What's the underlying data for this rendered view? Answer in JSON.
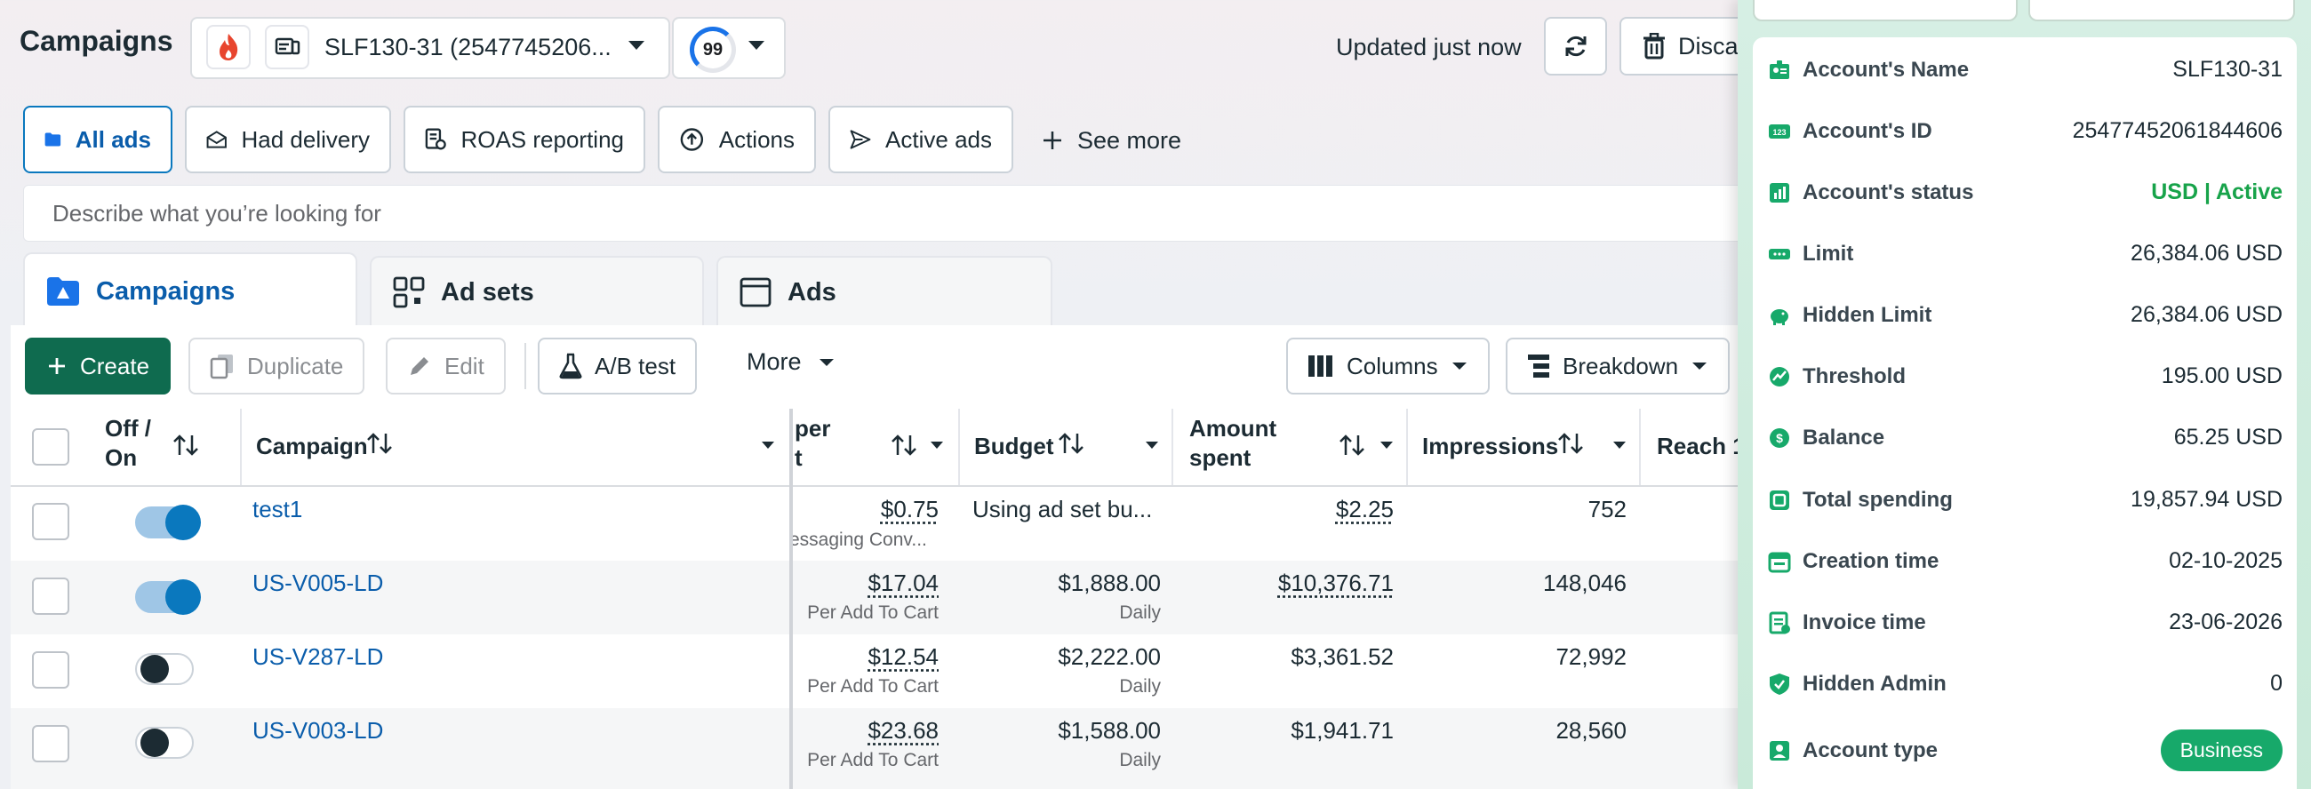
{
  "header": {
    "title": "Campaigns",
    "account_name": "SLF130-31 (2547745206...",
    "score": "99",
    "updated": "Updated just now",
    "discard_label": "Discard"
  },
  "filters": [
    {
      "label": "All ads",
      "icon": "folder-icon"
    },
    {
      "label": "Had delivery",
      "icon": "envelope-icon"
    },
    {
      "label": "ROAS reporting",
      "icon": "report-icon"
    },
    {
      "label": "Actions",
      "icon": "action-icon"
    },
    {
      "label": "Active ads",
      "icon": "send-icon"
    }
  ],
  "see_more": "See more",
  "search": {
    "placeholder": "Describe what you’re looking for"
  },
  "tabs": [
    {
      "label": "Campaigns",
      "icon": "campaign-folder-icon"
    },
    {
      "label": "Ad sets",
      "icon": "grid-icon"
    },
    {
      "label": "Ads",
      "icon": "ad-window-icon"
    }
  ],
  "toolbar": {
    "create": "Create",
    "duplicate": "Duplicate",
    "edit": "Edit",
    "ab_test": "A/B test",
    "more": "More",
    "columns": "Columns",
    "breakdown": "Breakdown"
  },
  "table": {
    "headers": {
      "off_on": [
        "Off /",
        "On"
      ],
      "campaign": "Campaign",
      "cost_per": [
        "per",
        "t"
      ],
      "budget": "Budget",
      "amount_spent": [
        "Amount",
        "spent"
      ],
      "impressions": "Impressions",
      "reach": "Reach 1"
    },
    "rows": [
      {
        "name": "test1",
        "on": true,
        "cost": "$0.75",
        "cost_sub": "essaging Conv...",
        "budget": "Using ad set bu...",
        "budget_sub": "",
        "spent": "$2.25",
        "impressions": "752"
      },
      {
        "name": "US-V005-LD",
        "on": true,
        "cost": "$17.04",
        "cost_sub": "Per Add To Cart",
        "budget": "$1,888.00",
        "budget_sub": "Daily",
        "spent": "$10,376.71",
        "impressions": "148,046"
      },
      {
        "name": "US-V287-LD",
        "on": false,
        "cost": "$12.54",
        "cost_sub": "Per Add To Cart",
        "budget": "$2,222.00",
        "budget_sub": "Daily",
        "spent": "$3,361.52",
        "impressions": "72,992"
      },
      {
        "name": "US-V003-LD",
        "on": false,
        "cost": "$23.68",
        "cost_sub": "Per Add To Cart",
        "budget": "$1,588.00",
        "budget_sub": "Daily",
        "spent": "$1,941.71",
        "impressions": "28,560"
      }
    ]
  },
  "sidebar": {
    "rows": [
      {
        "label": "Account's Name",
        "value": "SLF130-31",
        "icon": "id-card-icon"
      },
      {
        "label": "Account's ID",
        "value": "25477452061844606",
        "icon": "number-icon"
      },
      {
        "label": "Account's status",
        "value": "USD | Active",
        "icon": "status-chart-icon"
      },
      {
        "label": "Limit",
        "value": "26,384.06 USD",
        "icon": "limit-icon"
      },
      {
        "label": "Hidden Limit",
        "value": "26,384.06 USD",
        "icon": "piggy-bank-icon"
      },
      {
        "label": "Threshold",
        "value": "195.00 USD",
        "icon": "threshold-icon"
      },
      {
        "label": "Balance",
        "value": "65.25 USD",
        "icon": "dollar-icon"
      },
      {
        "label": "Total spending",
        "value": "19,857.94 USD",
        "icon": "spending-icon"
      },
      {
        "label": "Creation time",
        "value": "02-10-2025",
        "icon": "calendar-icon"
      },
      {
        "label": "Invoice time",
        "value": "23-06-2026",
        "icon": "invoice-icon"
      },
      {
        "label": "Hidden Admin",
        "value": "0",
        "icon": "shield-icon"
      },
      {
        "label": "Account type",
        "value": "Business",
        "icon": "account-icon"
      }
    ]
  },
  "colors": {
    "primary": "#0f6b4f",
    "link": "#0a5dab",
    "accent_green": "#17a96a",
    "toggle_on": "#0a78be"
  }
}
